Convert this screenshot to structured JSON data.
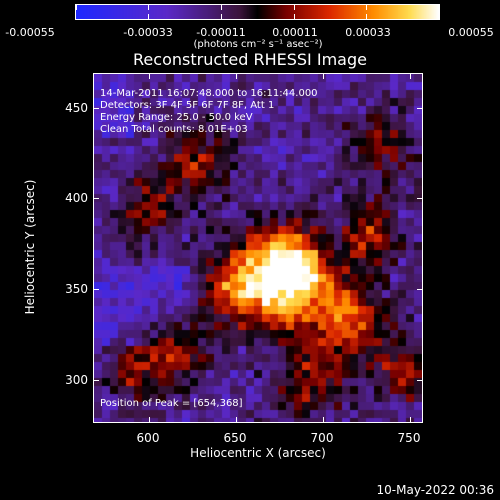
{
  "colorbar": {
    "labels": [
      "-0.00055",
      "-0.00033",
      "-0.00011",
      "0.00011",
      "0.00033",
      "0.00055"
    ],
    "units": "(photons cm⁻² s⁻¹ asec⁻²)"
  },
  "title": "Reconstructed RHESSI Image",
  "annotations": {
    "time_range": "14-Mar-2011 16:07:48.000 to 16:11:44.000",
    "detectors": "Detectors: 3F 4F 5F 6F 7F 8F, Att 1",
    "energy": "Energy Range: 25.0 - 50.0 keV",
    "method": "Clean    Total counts: 8.01E+03",
    "peak": "Position of Peak = [654,368]"
  },
  "axes": {
    "y_ticks": [
      "450",
      "400",
      "350",
      "300"
    ],
    "x_ticks": [
      "600",
      "650",
      "700",
      "750"
    ],
    "ylabel": "Heliocentric Y (arcsec)",
    "xlabel": "Heliocentric X (arcsec)"
  },
  "footer_date": "10-May-2022 00:36"
}
